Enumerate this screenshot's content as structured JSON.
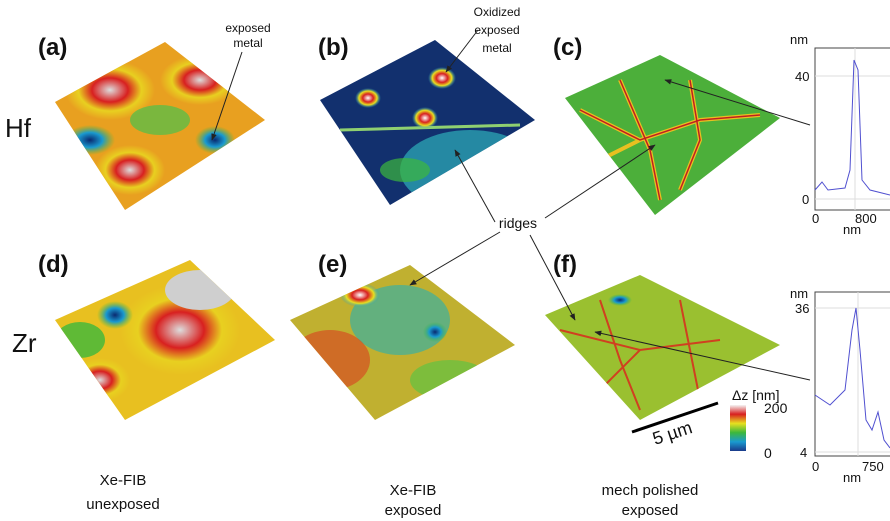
{
  "panels": [
    "(a)",
    "(b)",
    "(c)",
    "(d)",
    "(e)",
    "(f)"
  ],
  "rows": [
    "Hf",
    "Zr"
  ],
  "columns": [
    [
      "Xe-FIB",
      "unexposed"
    ],
    [
      "Xe-FIB",
      "exposed"
    ],
    [
      "mech polished",
      "exposed"
    ]
  ],
  "annotations": {
    "exposed_metal": [
      "exposed",
      "metal"
    ],
    "oxidized_metal": [
      "Oxidized",
      "exposed",
      "metal"
    ],
    "ridges": "ridges",
    "scale_bar": "5 µm"
  },
  "colorbar": {
    "title": "Δz [nm]",
    "max": 200,
    "min": 0
  },
  "insets": [
    {
      "y_unit": "nm",
      "yticks": [
        40,
        0
      ],
      "xticks": [
        0,
        800
      ],
      "x_unit": "nm"
    },
    {
      "y_unit": "nm",
      "yticks": [
        36,
        4
      ],
      "xticks": [
        0,
        750
      ],
      "x_unit": "nm"
    }
  ]
}
